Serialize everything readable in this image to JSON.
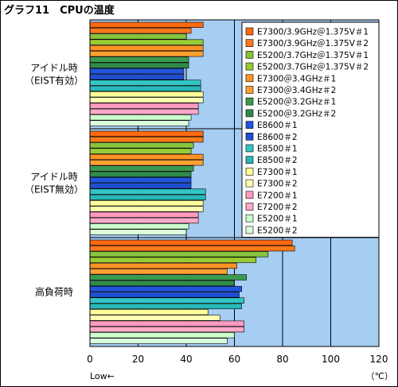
{
  "chart_data": {
    "type": "bar",
    "orientation": "horizontal",
    "title": "グラフ11　CPUの温度",
    "xlim": [
      0,
      120
    ],
    "xticks": [
      0,
      20,
      40,
      60,
      80,
      100,
      120
    ],
    "x_unit": "（℃）",
    "x_note": "Low←",
    "grid": true,
    "legend_position": "right",
    "categories": [
      {
        "label_lines": [
          "アイドル時",
          "（EIST有効）"
        ]
      },
      {
        "label_lines": [
          "アイドル時",
          "（EIST無効）"
        ]
      },
      {
        "label_lines": [
          "高負荷時"
        ]
      }
    ],
    "series": [
      {
        "name": "E7300/3.9GHz＠1.375V＃1",
        "color": "#ff6a10",
        "values": [
          47,
          47,
          84
        ]
      },
      {
        "name": "E7300/3.9GHz＠1.375V＃2",
        "color": "#ff7a1a",
        "values": [
          42,
          47,
          85
        ]
      },
      {
        "name": "E5200/3.7GHz＠1.375V＃1",
        "color": "#86c43c",
        "values": [
          40,
          43,
          74
        ]
      },
      {
        "name": "E5200/3.7GHz＠1.375V＃2",
        "color": "#99cc33",
        "values": [
          47,
          42,
          69
        ]
      },
      {
        "name": "E7300＠3.4GHz＃1",
        "color": "#ff9326",
        "values": [
          47,
          47,
          61
        ]
      },
      {
        "name": "E7300＠3.4GHz＃2",
        "color": "#ffa033",
        "values": [
          47,
          47,
          57
        ]
      },
      {
        "name": "E5200＠3.2GHz＃1",
        "color": "#3c9a50",
        "values": [
          41,
          43,
          65
        ]
      },
      {
        "name": "E5200＠3.2GHz＃2",
        "color": "#2f8a48",
        "values": [
          41,
          42,
          60
        ]
      },
      {
        "name": "E8600＃1",
        "color": "#2255dd",
        "values": [
          39,
          42,
          63
        ]
      },
      {
        "name": "E8600＃2",
        "color": "#1f4ecf",
        "values": [
          39,
          42,
          62
        ]
      },
      {
        "name": "E8500＃1",
        "color": "#33c6c6",
        "values": [
          46,
          48,
          64
        ]
      },
      {
        "name": "E8500＃2",
        "color": "#29b7b7",
        "values": [
          46,
          48,
          63
        ]
      },
      {
        "name": "E7300＃1",
        "color": "#ffff9a",
        "values": [
          47,
          47,
          49
        ]
      },
      {
        "name": "E7300＃2",
        "color": "#ffffb0",
        "values": [
          47,
          47,
          54
        ]
      },
      {
        "name": "E7200＃1",
        "color": "#ff9bc0",
        "values": [
          45,
          45,
          64
        ]
      },
      {
        "name": "E7200＃2",
        "color": "#ffa8c8",
        "values": [
          45,
          45,
          64
        ]
      },
      {
        "name": "E5200＃1",
        "color": "#ccffcc",
        "values": [
          42,
          41,
          60
        ]
      },
      {
        "name": "E5200＃2",
        "color": "#dcffdc",
        "values": [
          41,
          40,
          57
        ]
      }
    ]
  },
  "colors": {
    "plot_background": "#a6cdf2",
    "bar_outline": "#000000",
    "gridline": "#000000"
  }
}
